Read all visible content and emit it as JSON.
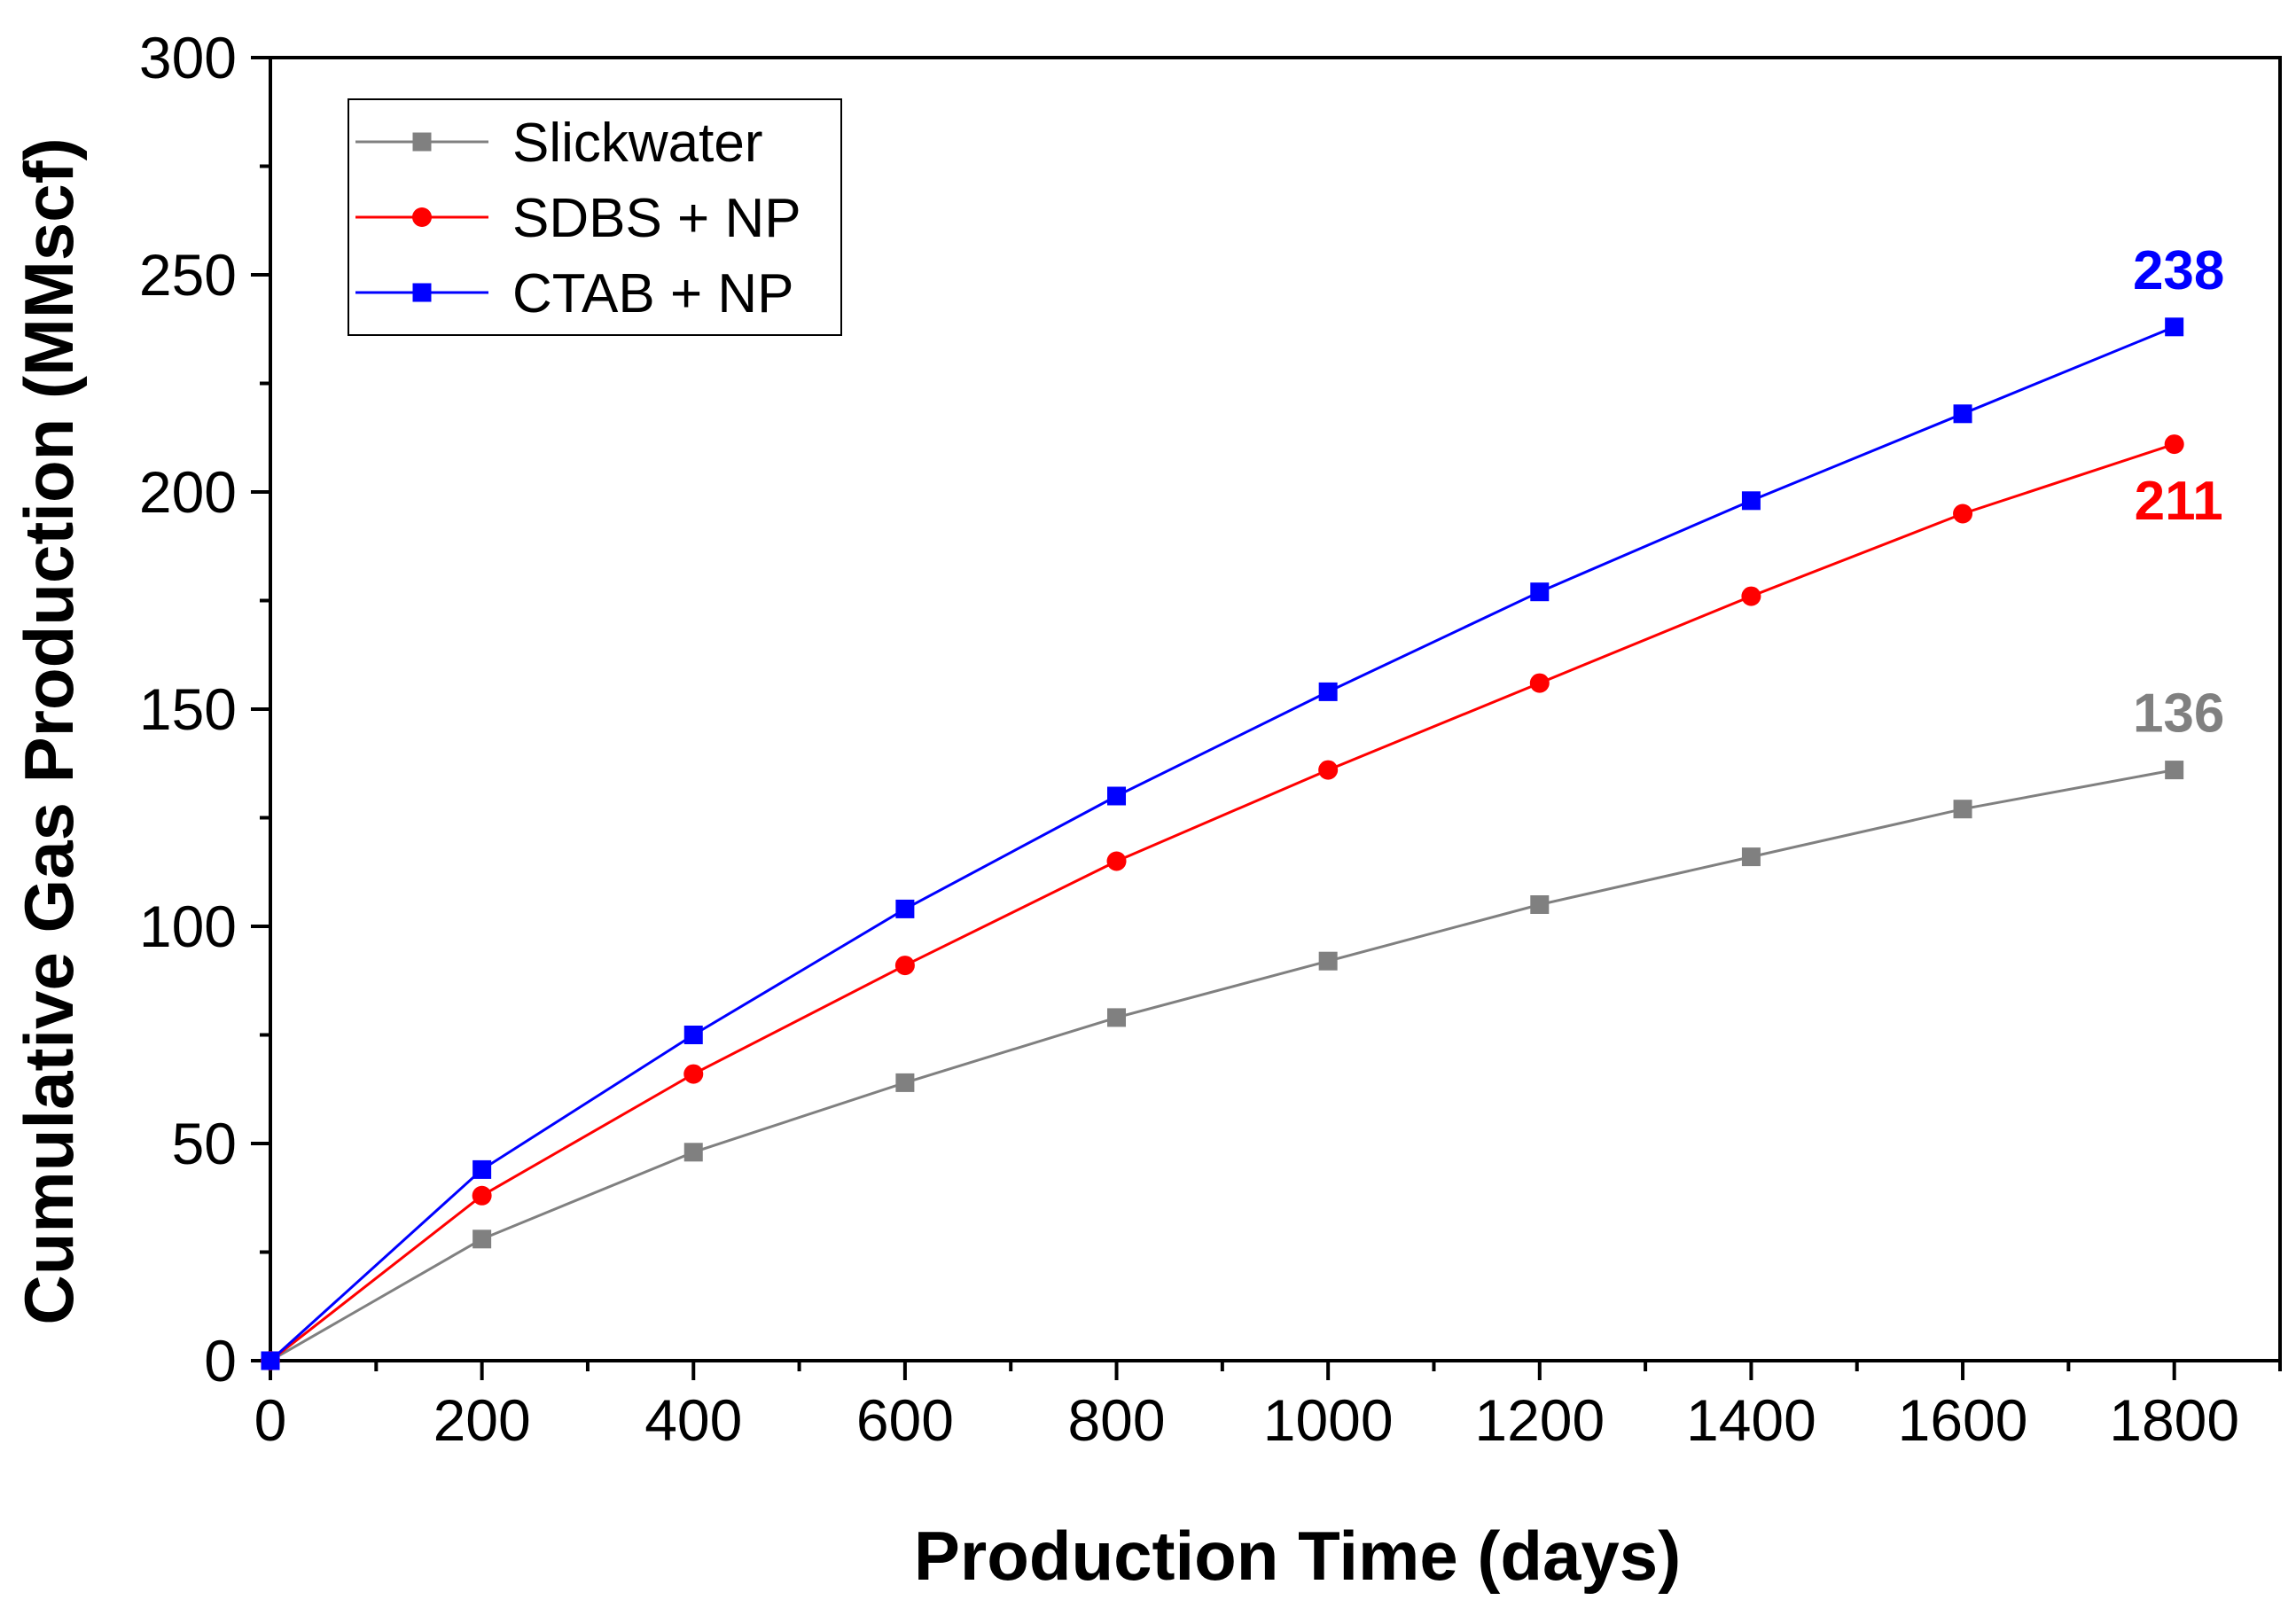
{
  "chart_data": {
    "type": "line",
    "title": "",
    "xlabel": "Production Time (days)",
    "ylabel": "Cumulative Gas Production (MMscf)",
    "xlim": [
      0,
      1900
    ],
    "ylim": [
      0,
      300
    ],
    "x_major_ticks": [
      0,
      200,
      400,
      600,
      800,
      1000,
      1200,
      1400,
      1600,
      1800
    ],
    "x_tick_labels": [
      "0",
      "200",
      "400",
      "600",
      "800",
      "1000",
      "1200",
      "1400",
      "1600",
      "1800"
    ],
    "y_major_ticks": [
      0,
      50,
      100,
      150,
      200,
      250,
      300
    ],
    "y_tick_labels": [
      "0",
      "50",
      "100",
      "150",
      "200",
      "250",
      "300"
    ],
    "grid": false,
    "legend_position": "top-left",
    "x": [
      0,
      200,
      400,
      600,
      800,
      1000,
      1200,
      1400,
      1600,
      1800
    ],
    "series": [
      {
        "name": "Slickwater",
        "color": "#808080",
        "marker": "square",
        "values": [
          0,
          28,
          48,
          64,
          79,
          92,
          105,
          116,
          127,
          136
        ],
        "end_label": "136",
        "end_label_color": "#808080"
      },
      {
        "name": "SDBS + NP",
        "color": "#ff0000",
        "marker": "circle",
        "values": [
          0,
          38,
          66,
          91,
          115,
          136,
          156,
          176,
          195,
          211
        ],
        "end_label": "211",
        "end_label_color": "#ff0000"
      },
      {
        "name": "CTAB + NP",
        "color": "#0000ff",
        "marker": "square",
        "values": [
          0,
          44,
          75,
          104,
          130,
          154,
          177,
          198,
          218,
          238
        ],
        "end_label": "238",
        "end_label_color": "#0000ff"
      }
    ]
  }
}
